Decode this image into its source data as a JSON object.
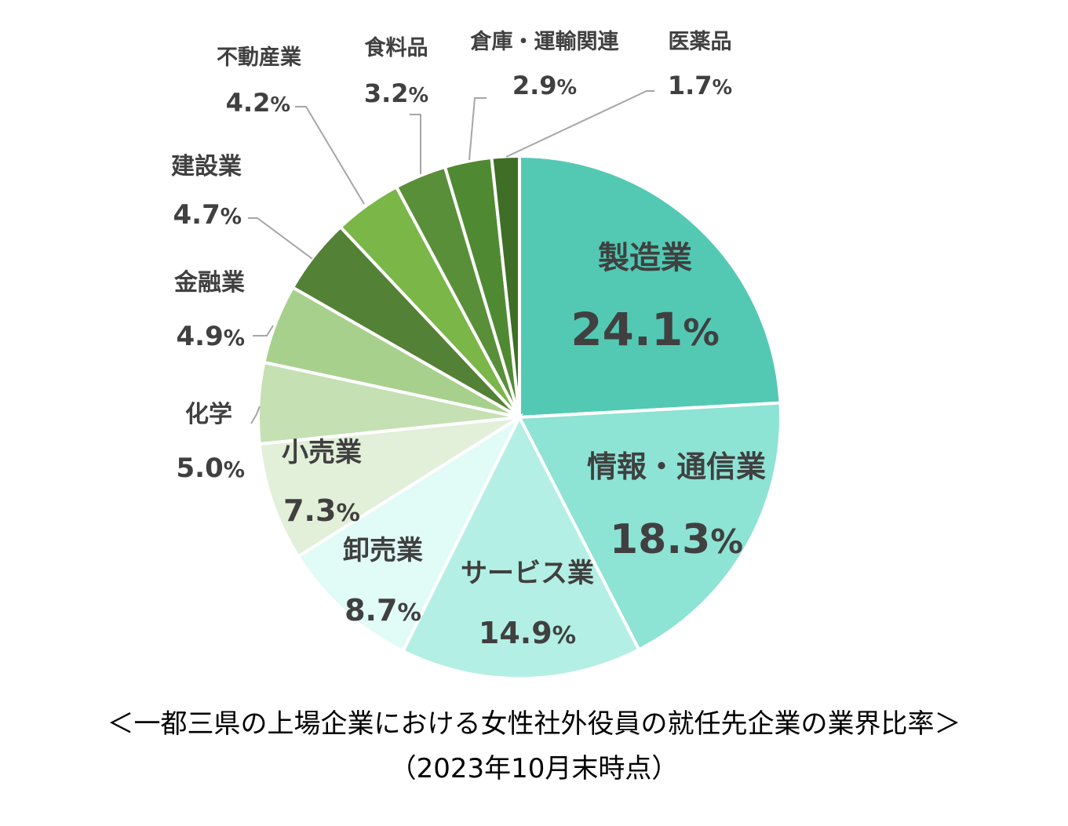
{
  "chart_data": {
    "type": "pie",
    "start_angle": "12 o'clock",
    "direction": "clockwise",
    "slices": [
      {
        "name": "製造業",
        "value": 24.1,
        "label": "24.1",
        "color": "#53c9b4"
      },
      {
        "name": "情報・通信業",
        "value": 18.3,
        "label": "18.3",
        "color": "#8de3d4"
      },
      {
        "name": "サービス業",
        "value": 14.9,
        "label": "14.9",
        "color": "#b3efe4"
      },
      {
        "name": "卸売業",
        "value": 8.7,
        "label": "8.7",
        "color": "#e1fbf7"
      },
      {
        "name": "小売業",
        "value": 7.3,
        "label": "7.3",
        "color": "#e2efd9"
      },
      {
        "name": "化学",
        "value": 5.0,
        "label": "5.0",
        "color": "#c5e0b3"
      },
      {
        "name": "金融業",
        "value": 4.9,
        "label": "4.9",
        "color": "#a8d08d"
      },
      {
        "name": "建設業",
        "value": 4.7,
        "label": "4.7",
        "color": "#538135"
      },
      {
        "name": "不動産業",
        "value": 4.2,
        "label": "4.2",
        "color": "#7ab648"
      },
      {
        "name": "食料品",
        "value": 3.2,
        "label": "3.2",
        "color": "#5a8f3a"
      },
      {
        "name": "倉庫・運輸関連",
        "value": 2.9,
        "label": "2.9",
        "color": "#4f8a32"
      },
      {
        "name": "医薬品",
        "value": 1.7,
        "label": "1.7",
        "color": "#3f6e26"
      }
    ],
    "percent_sign": "%"
  },
  "caption": {
    "line1": "＜一都三県の上場企業における女性社外役員の就任先企業の業界比率＞",
    "line2": "（2023年10月末時点）"
  }
}
